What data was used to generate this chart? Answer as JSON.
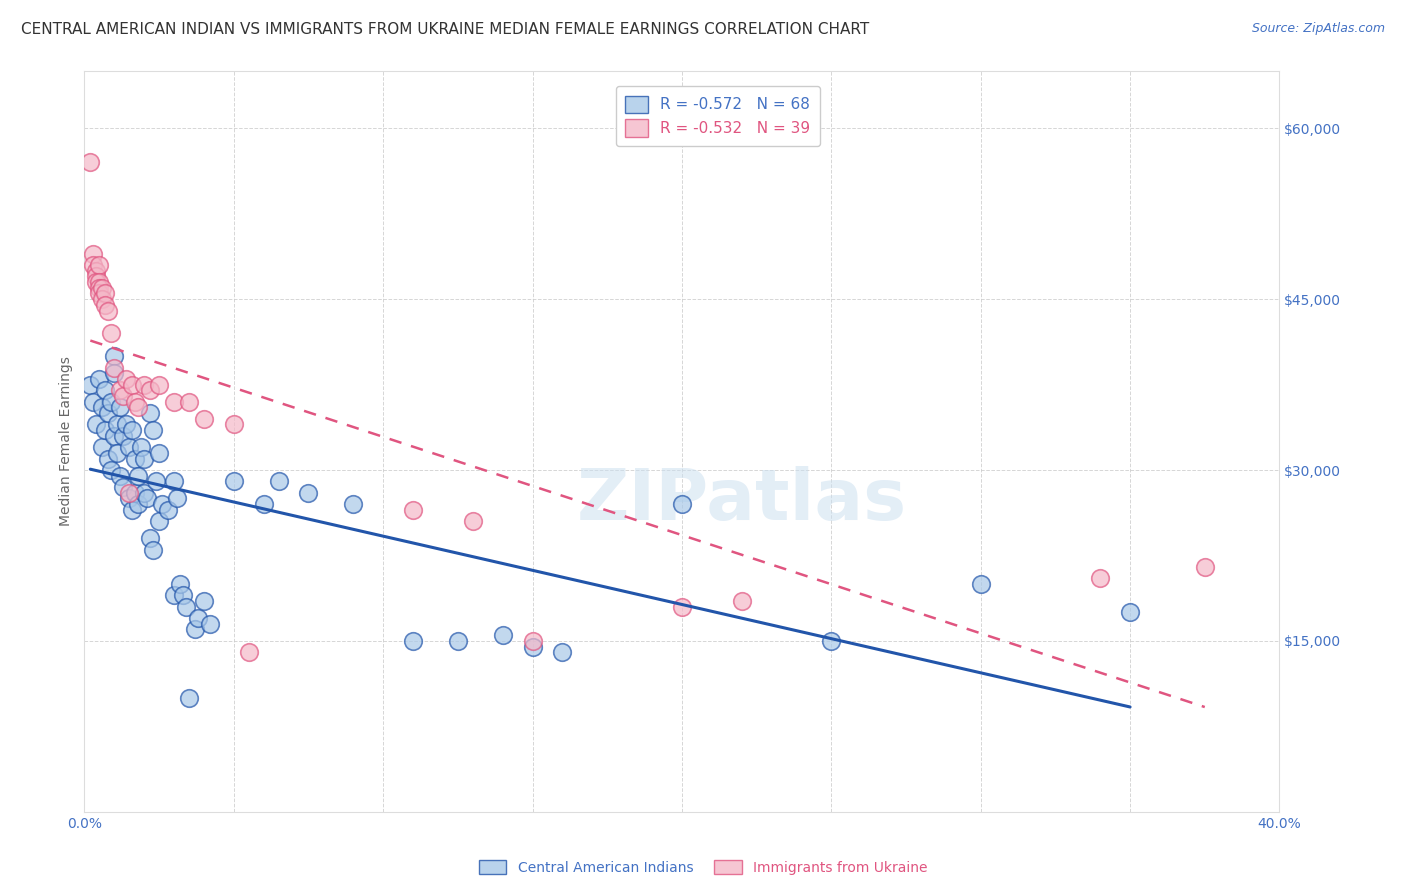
{
  "title": "CENTRAL AMERICAN INDIAN VS IMMIGRANTS FROM UKRAINE MEDIAN FEMALE EARNINGS CORRELATION CHART",
  "source": "Source: ZipAtlas.com",
  "ylabel": "Median Female Earnings",
  "xlim": [
    0.0,
    0.4
  ],
  "ylim": [
    0,
    65000
  ],
  "yticks": [
    0,
    15000,
    30000,
    45000,
    60000
  ],
  "xticks": [
    0.0,
    0.05,
    0.1,
    0.15,
    0.2,
    0.25,
    0.3,
    0.35,
    0.4
  ],
  "blue_color": "#a8c8e8",
  "pink_color": "#f4b8c8",
  "blue_line_color": "#2255aa",
  "pink_line_color": "#e05580",
  "R_blue": -0.572,
  "N_blue": 68,
  "R_pink": -0.532,
  "N_pink": 39,
  "legend_label_blue": "Central American Indians",
  "legend_label_pink": "Immigrants from Ukraine",
  "watermark": "ZIPatlas",
  "background_color": "#ffffff",
  "grid_color": "#cccccc",
  "axis_color": "#4472c4",
  "title_color": "#333333",
  "source_color": "#4472c4",
  "ylabel_color": "#666666",
  "blue_scatter": [
    [
      0.002,
      37500
    ],
    [
      0.003,
      36000
    ],
    [
      0.004,
      34000
    ],
    [
      0.005,
      38000
    ],
    [
      0.006,
      35500
    ],
    [
      0.006,
      32000
    ],
    [
      0.007,
      37000
    ],
    [
      0.007,
      33500
    ],
    [
      0.008,
      35000
    ],
    [
      0.008,
      31000
    ],
    [
      0.009,
      36000
    ],
    [
      0.009,
      30000
    ],
    [
      0.01,
      40000
    ],
    [
      0.01,
      33000
    ],
    [
      0.01,
      38500
    ],
    [
      0.011,
      34000
    ],
    [
      0.011,
      31500
    ],
    [
      0.012,
      35500
    ],
    [
      0.012,
      29500
    ],
    [
      0.013,
      33000
    ],
    [
      0.013,
      28500
    ],
    [
      0.014,
      34000
    ],
    [
      0.015,
      32000
    ],
    [
      0.015,
      27500
    ],
    [
      0.016,
      33500
    ],
    [
      0.016,
      26500
    ],
    [
      0.017,
      31000
    ],
    [
      0.017,
      28000
    ],
    [
      0.018,
      29500
    ],
    [
      0.018,
      27000
    ],
    [
      0.019,
      32000
    ],
    [
      0.02,
      31000
    ],
    [
      0.02,
      28000
    ],
    [
      0.021,
      27500
    ],
    [
      0.022,
      35000
    ],
    [
      0.022,
      24000
    ],
    [
      0.023,
      33500
    ],
    [
      0.023,
      23000
    ],
    [
      0.024,
      29000
    ],
    [
      0.025,
      31500
    ],
    [
      0.025,
      25500
    ],
    [
      0.026,
      27000
    ],
    [
      0.028,
      26500
    ],
    [
      0.03,
      29000
    ],
    [
      0.03,
      19000
    ],
    [
      0.031,
      27500
    ],
    [
      0.032,
      20000
    ],
    [
      0.033,
      19000
    ],
    [
      0.034,
      18000
    ],
    [
      0.035,
      10000
    ],
    [
      0.037,
      16000
    ],
    [
      0.038,
      17000
    ],
    [
      0.04,
      18500
    ],
    [
      0.042,
      16500
    ],
    [
      0.05,
      29000
    ],
    [
      0.06,
      27000
    ],
    [
      0.065,
      29000
    ],
    [
      0.075,
      28000
    ],
    [
      0.09,
      27000
    ],
    [
      0.11,
      15000
    ],
    [
      0.125,
      15000
    ],
    [
      0.14,
      15500
    ],
    [
      0.15,
      14500
    ],
    [
      0.16,
      14000
    ],
    [
      0.2,
      27000
    ],
    [
      0.25,
      15000
    ],
    [
      0.3,
      20000
    ],
    [
      0.35,
      17500
    ]
  ],
  "pink_scatter": [
    [
      0.002,
      57000
    ],
    [
      0.003,
      49000
    ],
    [
      0.003,
      48000
    ],
    [
      0.004,
      47500
    ],
    [
      0.004,
      47000
    ],
    [
      0.004,
      46500
    ],
    [
      0.005,
      48000
    ],
    [
      0.005,
      46500
    ],
    [
      0.005,
      46000
    ],
    [
      0.005,
      45500
    ],
    [
      0.006,
      46000
    ],
    [
      0.006,
      45000
    ],
    [
      0.007,
      45500
    ],
    [
      0.007,
      44500
    ],
    [
      0.008,
      44000
    ],
    [
      0.009,
      42000
    ],
    [
      0.01,
      39000
    ],
    [
      0.012,
      37000
    ],
    [
      0.013,
      36500
    ],
    [
      0.014,
      38000
    ],
    [
      0.015,
      28000
    ],
    [
      0.016,
      37500
    ],
    [
      0.017,
      36000
    ],
    [
      0.018,
      35500
    ],
    [
      0.02,
      37500
    ],
    [
      0.022,
      37000
    ],
    [
      0.025,
      37500
    ],
    [
      0.03,
      36000
    ],
    [
      0.035,
      36000
    ],
    [
      0.04,
      34500
    ],
    [
      0.05,
      34000
    ],
    [
      0.055,
      14000
    ],
    [
      0.11,
      26500
    ],
    [
      0.13,
      25500
    ],
    [
      0.15,
      15000
    ],
    [
      0.2,
      18000
    ],
    [
      0.22,
      18500
    ],
    [
      0.34,
      20500
    ],
    [
      0.375,
      21500
    ]
  ],
  "title_fontsize": 11,
  "source_fontsize": 9,
  "axis_label_fontsize": 10,
  "tick_fontsize": 10,
  "legend_fontsize": 11,
  "watermark_fontsize": 52,
  "watermark_color": "#cce0f0",
  "watermark_alpha": 0.55
}
